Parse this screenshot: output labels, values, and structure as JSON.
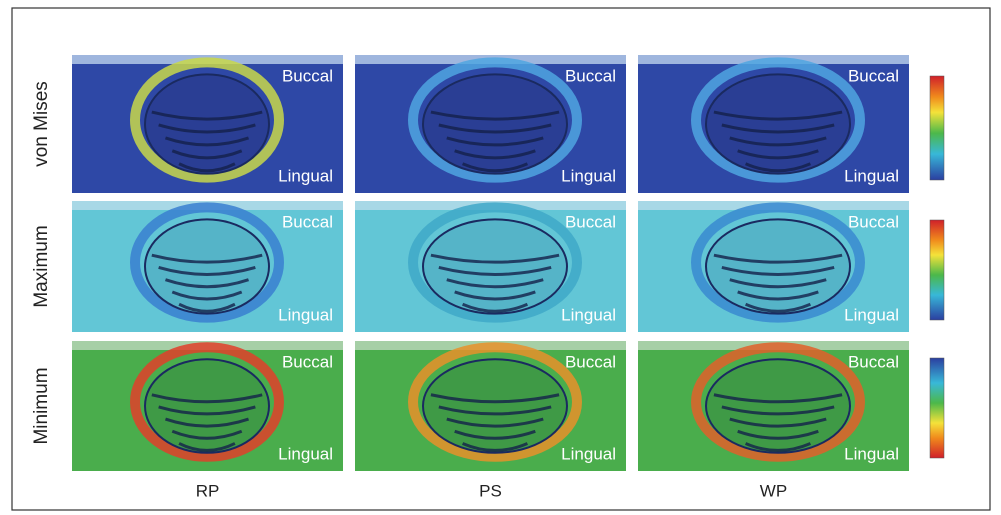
{
  "columns": [
    "RP",
    "PS",
    "WP"
  ],
  "rows": [
    {
      "label": "von Mises",
      "panels": [
        {
          "top": "Buccal",
          "bottom": "Lingual"
        },
        {
          "top": "Buccal",
          "bottom": "Lingual"
        },
        {
          "top": "Buccal",
          "bottom": "Lingual"
        }
      ]
    },
    {
      "label": "Maximum",
      "panels": [
        {
          "top": "Buccal",
          "bottom": "Lingual"
        },
        {
          "top": "Buccal",
          "bottom": "Lingual"
        },
        {
          "top": "Buccal",
          "bottom": "Lingual"
        }
      ]
    },
    {
      "label": "Minimum",
      "panels": [
        {
          "top": "Buccal",
          "bottom": "Lingual"
        },
        {
          "top": "Buccal",
          "bottom": "Lingual"
        },
        {
          "top": "Buccal",
          "bottom": "Lingual"
        }
      ]
    }
  ]
}
